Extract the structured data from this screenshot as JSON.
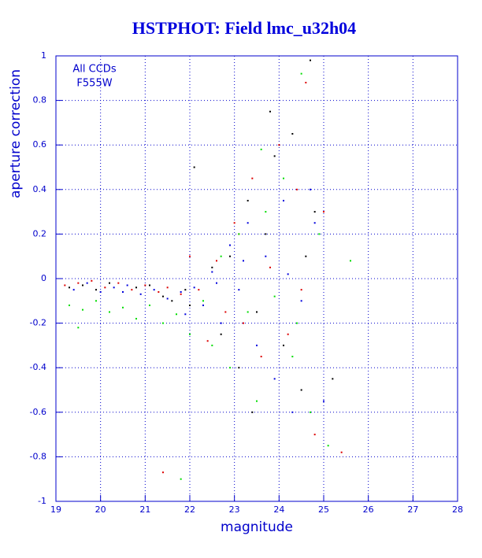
{
  "chart_data": {
    "type": "scatter",
    "title": "HSTPHOT: Field lmc_u32h04",
    "x_label": "magnitude",
    "y_label": "aperture correction",
    "annotations": [
      "All CCDs",
      "F555W"
    ],
    "xlim": [
      19,
      28
    ],
    "ylim": [
      -1,
      1
    ],
    "xticks": [
      19,
      20,
      21,
      22,
      23,
      24,
      25,
      26,
      27,
      28
    ],
    "yticks": [
      -1,
      -0.8,
      -0.6,
      -0.4,
      -0.2,
      0,
      0.2,
      0.4,
      0.6,
      0.8,
      1
    ],
    "grid": true,
    "axis_color": "#0000cc",
    "series": [
      {
        "color": "#000000",
        "x": [
          19.3,
          19.6,
          19.9,
          20.2,
          20.5,
          20.8,
          21.1,
          21.4,
          21.6,
          21.9,
          22.1,
          22.3,
          22.5,
          22.7,
          22.9,
          23.1,
          23.3,
          23.5,
          23.7,
          23.9,
          24.1,
          24.3,
          24.5,
          24.7,
          24.8,
          25.2,
          22.0,
          23.8,
          24.6,
          23.4
        ],
        "values": [
          -0.04,
          -0.03,
          -0.05,
          -0.02,
          -0.06,
          -0.04,
          -0.03,
          -0.08,
          -0.1,
          -0.05,
          0.5,
          -0.12,
          0.05,
          -0.25,
          0.1,
          -0.4,
          0.35,
          -0.15,
          0.2,
          0.55,
          -0.3,
          0.65,
          -0.5,
          0.98,
          0.3,
          -0.45,
          -0.12,
          0.75,
          0.1,
          -0.6
        ]
      },
      {
        "color": "#dd0000",
        "x": [
          19.2,
          19.5,
          19.8,
          20.1,
          20.4,
          20.7,
          21.0,
          21.3,
          21.5,
          21.8,
          22.0,
          22.2,
          22.4,
          22.6,
          22.8,
          23.0,
          23.2,
          23.4,
          23.6,
          23.8,
          24.0,
          24.2,
          24.4,
          24.6,
          24.8,
          25.0,
          25.4,
          21.4,
          23.1,
          24.5
        ],
        "values": [
          -0.03,
          -0.02,
          -0.01,
          -0.04,
          -0.02,
          -0.05,
          -0.03,
          -0.06,
          -0.04,
          -0.07,
          0.1,
          -0.05,
          -0.28,
          0.08,
          -0.15,
          0.25,
          -0.2,
          0.45,
          -0.35,
          0.05,
          0.6,
          -0.25,
          0.4,
          0.88,
          -0.7,
          0.3,
          -0.78,
          -0.87,
          0.2,
          -0.05
        ]
      },
      {
        "color": "#00dd00",
        "x": [
          19.3,
          19.6,
          19.9,
          20.2,
          20.5,
          20.8,
          21.1,
          21.4,
          21.7,
          22.0,
          22.3,
          22.5,
          22.7,
          22.9,
          23.1,
          23.3,
          23.5,
          23.7,
          23.9,
          24.1,
          24.3,
          24.5,
          24.7,
          24.9,
          25.1,
          25.6,
          19.5,
          21.8,
          23.6,
          24.4
        ],
        "values": [
          -0.12,
          -0.14,
          -0.1,
          -0.15,
          -0.13,
          -0.18,
          -0.12,
          -0.2,
          -0.16,
          -0.25,
          -0.1,
          -0.3,
          0.1,
          -0.4,
          0.2,
          -0.15,
          -0.55,
          0.3,
          -0.08,
          0.45,
          -0.35,
          0.92,
          -0.6,
          0.2,
          -0.75,
          0.08,
          -0.22,
          -0.9,
          0.58,
          -0.2
        ]
      },
      {
        "color": "#0000dd",
        "x": [
          19.4,
          19.7,
          20.0,
          20.3,
          20.6,
          20.9,
          21.2,
          21.5,
          21.8,
          22.1,
          22.3,
          22.5,
          22.7,
          22.9,
          23.1,
          23.3,
          23.5,
          23.7,
          23.9,
          24.1,
          24.3,
          24.5,
          24.7,
          25.0,
          21.9,
          22.6,
          23.2,
          24.2,
          24.8,
          20.5
        ],
        "values": [
          -0.05,
          -0.02,
          -0.06,
          -0.04,
          -0.03,
          -0.07,
          -0.05,
          -0.09,
          -0.06,
          -0.04,
          -0.12,
          0.03,
          -0.2,
          0.15,
          -0.05,
          0.25,
          -0.3,
          0.1,
          -0.45,
          0.35,
          -0.6,
          -0.1,
          0.4,
          -0.55,
          -0.16,
          -0.02,
          0.08,
          0.02,
          0.25,
          -0.06
        ]
      }
    ]
  }
}
